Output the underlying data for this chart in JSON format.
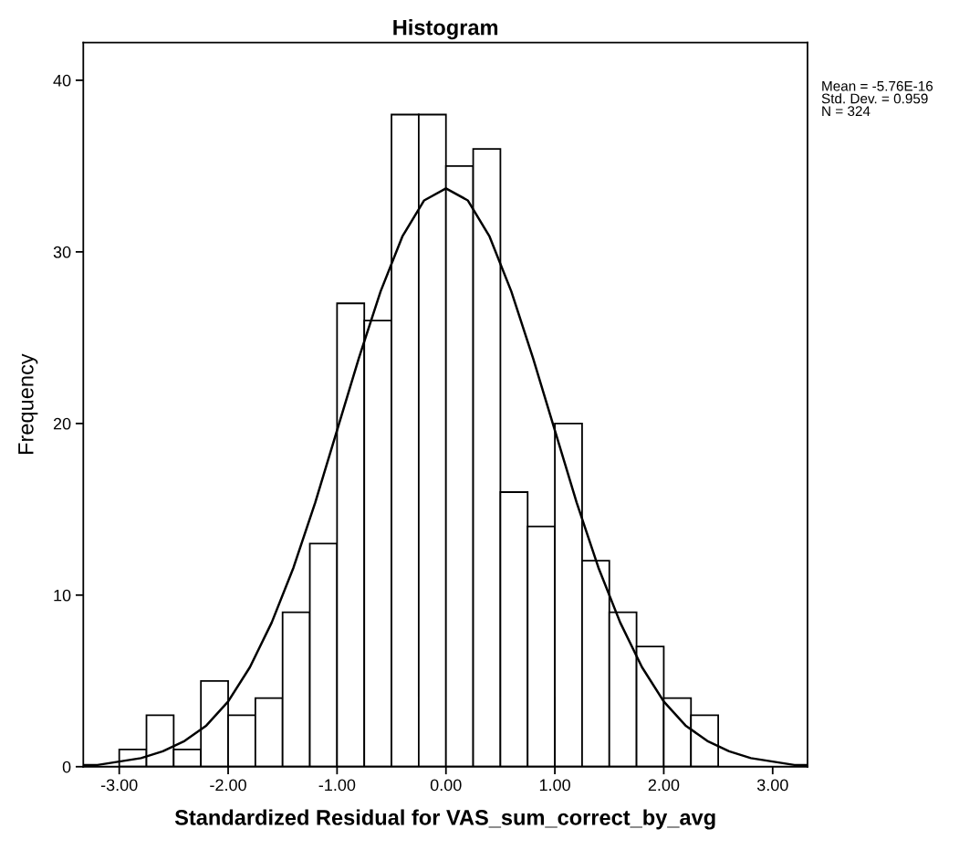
{
  "chart_data": {
    "type": "histogram",
    "title": "Histogram",
    "xlabel": "Standardized Residual for VAS_sum_correct_by_avg",
    "ylabel": "Frequency",
    "bins": [
      -3.0,
      -2.75,
      -2.5,
      -2.25,
      -2.0,
      -1.75,
      -1.5,
      -1.25,
      -1.0,
      -0.75,
      -0.5,
      -0.25,
      0.0,
      0.25,
      0.5,
      0.75,
      1.0,
      1.25,
      1.5,
      1.75,
      2.0,
      2.25,
      2.5
    ],
    "values": [
      1,
      3,
      1,
      5,
      3,
      4,
      9,
      13,
      27,
      26,
      38,
      38,
      35,
      36,
      16,
      14,
      20,
      12,
      9,
      7,
      4,
      3
    ],
    "color": "#ffffff",
    "series": [
      {
        "type": "line",
        "color": "#000000",
        "x": [
          -3.32,
          -3.2,
          -3.0,
          -2.8,
          -2.6,
          -2.4,
          -2.2,
          -2.0,
          -1.8,
          -1.6,
          -1.4,
          -1.2,
          -1.0,
          -0.8,
          -0.6,
          -0.4,
          -0.2,
          0.0,
          0.2,
          0.4,
          0.6,
          0.8,
          1.0,
          1.2,
          1.4,
          1.6,
          1.8,
          2.0,
          2.2,
          2.4,
          2.6,
          2.8,
          3.0,
          3.2,
          3.32
        ],
        "values": [
          0.1,
          0.1,
          0.3,
          0.5,
          0.9,
          1.5,
          2.4,
          3.8,
          5.8,
          8.4,
          11.6,
          15.4,
          19.6,
          23.8,
          27.7,
          30.9,
          33.0,
          33.7,
          33.0,
          30.9,
          27.7,
          23.8,
          19.6,
          15.4,
          11.6,
          8.4,
          5.8,
          3.8,
          2.4,
          1.5,
          0.9,
          0.5,
          0.3,
          0.1,
          0.1
        ]
      }
    ],
    "xlim": [
      -3.33,
      3.32
    ],
    "xticks": [
      {
        "value": -3,
        "label": "-3.00"
      },
      {
        "value": -2,
        "label": "-2.00"
      },
      {
        "value": -1,
        "label": "-1.00"
      },
      {
        "value": 0,
        "label": "0.00"
      },
      {
        "value": 1,
        "label": "1.00"
      },
      {
        "value": 2,
        "label": "2.00"
      },
      {
        "value": 3,
        "label": "3.00"
      }
    ],
    "ylim": [
      0,
      42.2
    ],
    "yticks": [
      0,
      10,
      20,
      30,
      40
    ],
    "grid": false,
    "annotations": [
      "Mean = -5.76E-16",
      "Std. Dev. = 0.959",
      "N = 324"
    ]
  }
}
